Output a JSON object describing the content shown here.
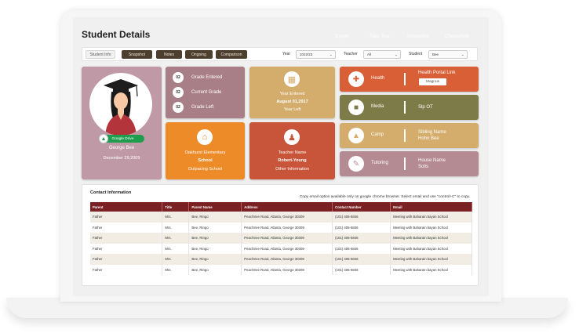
{
  "page": {
    "title": "Student Details"
  },
  "header_buttons": [
    {
      "label": "Export",
      "color": "#2ea24a"
    },
    {
      "label": "Take Tour",
      "color": "#4d3f2e"
    },
    {
      "label": "Instruction",
      "color": "#4d3f2e"
    },
    {
      "label": "Cheatsheet",
      "color": "#d6312f"
    }
  ],
  "tabs": [
    "Student Info",
    "Snapshot",
    "Notes",
    "Ongoing",
    "Comparison"
  ],
  "filters": {
    "year": {
      "label": "Year",
      "value": "2022/23"
    },
    "teacher": {
      "label": "Teacher",
      "value": "All"
    },
    "student": {
      "label": "Student",
      "value": "Bee"
    }
  },
  "profile": {
    "google_drive": "Google Drive",
    "name": "George  Bee",
    "dob": "December 29,2009"
  },
  "grades": [
    {
      "num": "02",
      "label": "Grade Entered"
    },
    {
      "num": "02",
      "label": "Current Grade"
    },
    {
      "num": "02",
      "label": "Grade Left"
    }
  ],
  "year_card": {
    "line1": "Year Entered",
    "line2": "August 01,2017",
    "line3": "Year Left"
  },
  "school_card": {
    "line1": "Oakhurst Elementary",
    "line2": "School",
    "line3": "Outpacing School"
  },
  "teacher_card": {
    "line1": "Teacher Name",
    "line2": "Robert-Young",
    "line3": "Other Information"
  },
  "right_cards": [
    {
      "label": "Health",
      "value": "Health Portal Link",
      "button": "Magnus",
      "color": "#d95f36",
      "icon": "first-aid-icon"
    },
    {
      "label": "Media",
      "value": "Slp OT",
      "color": "#7d7c48",
      "icon": "video-camera-icon"
    },
    {
      "label": "Camp",
      "value": "Sibling Name\nHohn Bee",
      "color": "#d4ad6c",
      "icon": "tent-icon"
    },
    {
      "label": "Tutoring",
      "value": "House Name\nSolis",
      "color": "#b48a93",
      "icon": "tutoring-icon"
    }
  ],
  "contact": {
    "title": "Contact Information",
    "note": "Copy email option available only on google chrome browser. Select email and use  \"control+C\" to copy.",
    "columns": [
      "Parent",
      "Title",
      "Parent Name",
      "Address",
      "Contact Number",
      "Email"
    ],
    "rows": [
      [
        "Father",
        "Mrs.",
        "Bee, Ringo",
        "Peachtree Road, Atlanta, George 30309",
        "(101) 406-5846",
        "Meeting with Baharain bayan School"
      ],
      [
        "Father",
        "Mrs.",
        "Bee, Ringo",
        "Peachtree Road, Atlanta, George 30309",
        "(101) 406-5846",
        "Meeting with Baharain bayan School"
      ],
      [
        "Father",
        "Mrs.",
        "Bee, Ringo",
        "Peachtree Road, Atlanta, George 30309",
        "(101) 406-5846",
        "Meeting with Baharain bayan School"
      ],
      [
        "Father",
        "Mrs.",
        "Bee, Ringo",
        "Peachtree Road, Atlanta, George 30309",
        "(101) 406-5846",
        "Meeting with Baharain bayan School"
      ],
      [
        "Father",
        "Mrs.",
        "Bee, Ringo",
        "Peachtree Road, Atlanta, George 30309",
        "(101) 406-5846",
        "Meeting with Baharain bayan School"
      ],
      [
        "Father",
        "Mrs.",
        "Bee, Ringo",
        "Peachtree Road, Atlanta, George 30309",
        "(101) 406-5846",
        "Meeting with Baharain bayan School"
      ]
    ]
  }
}
